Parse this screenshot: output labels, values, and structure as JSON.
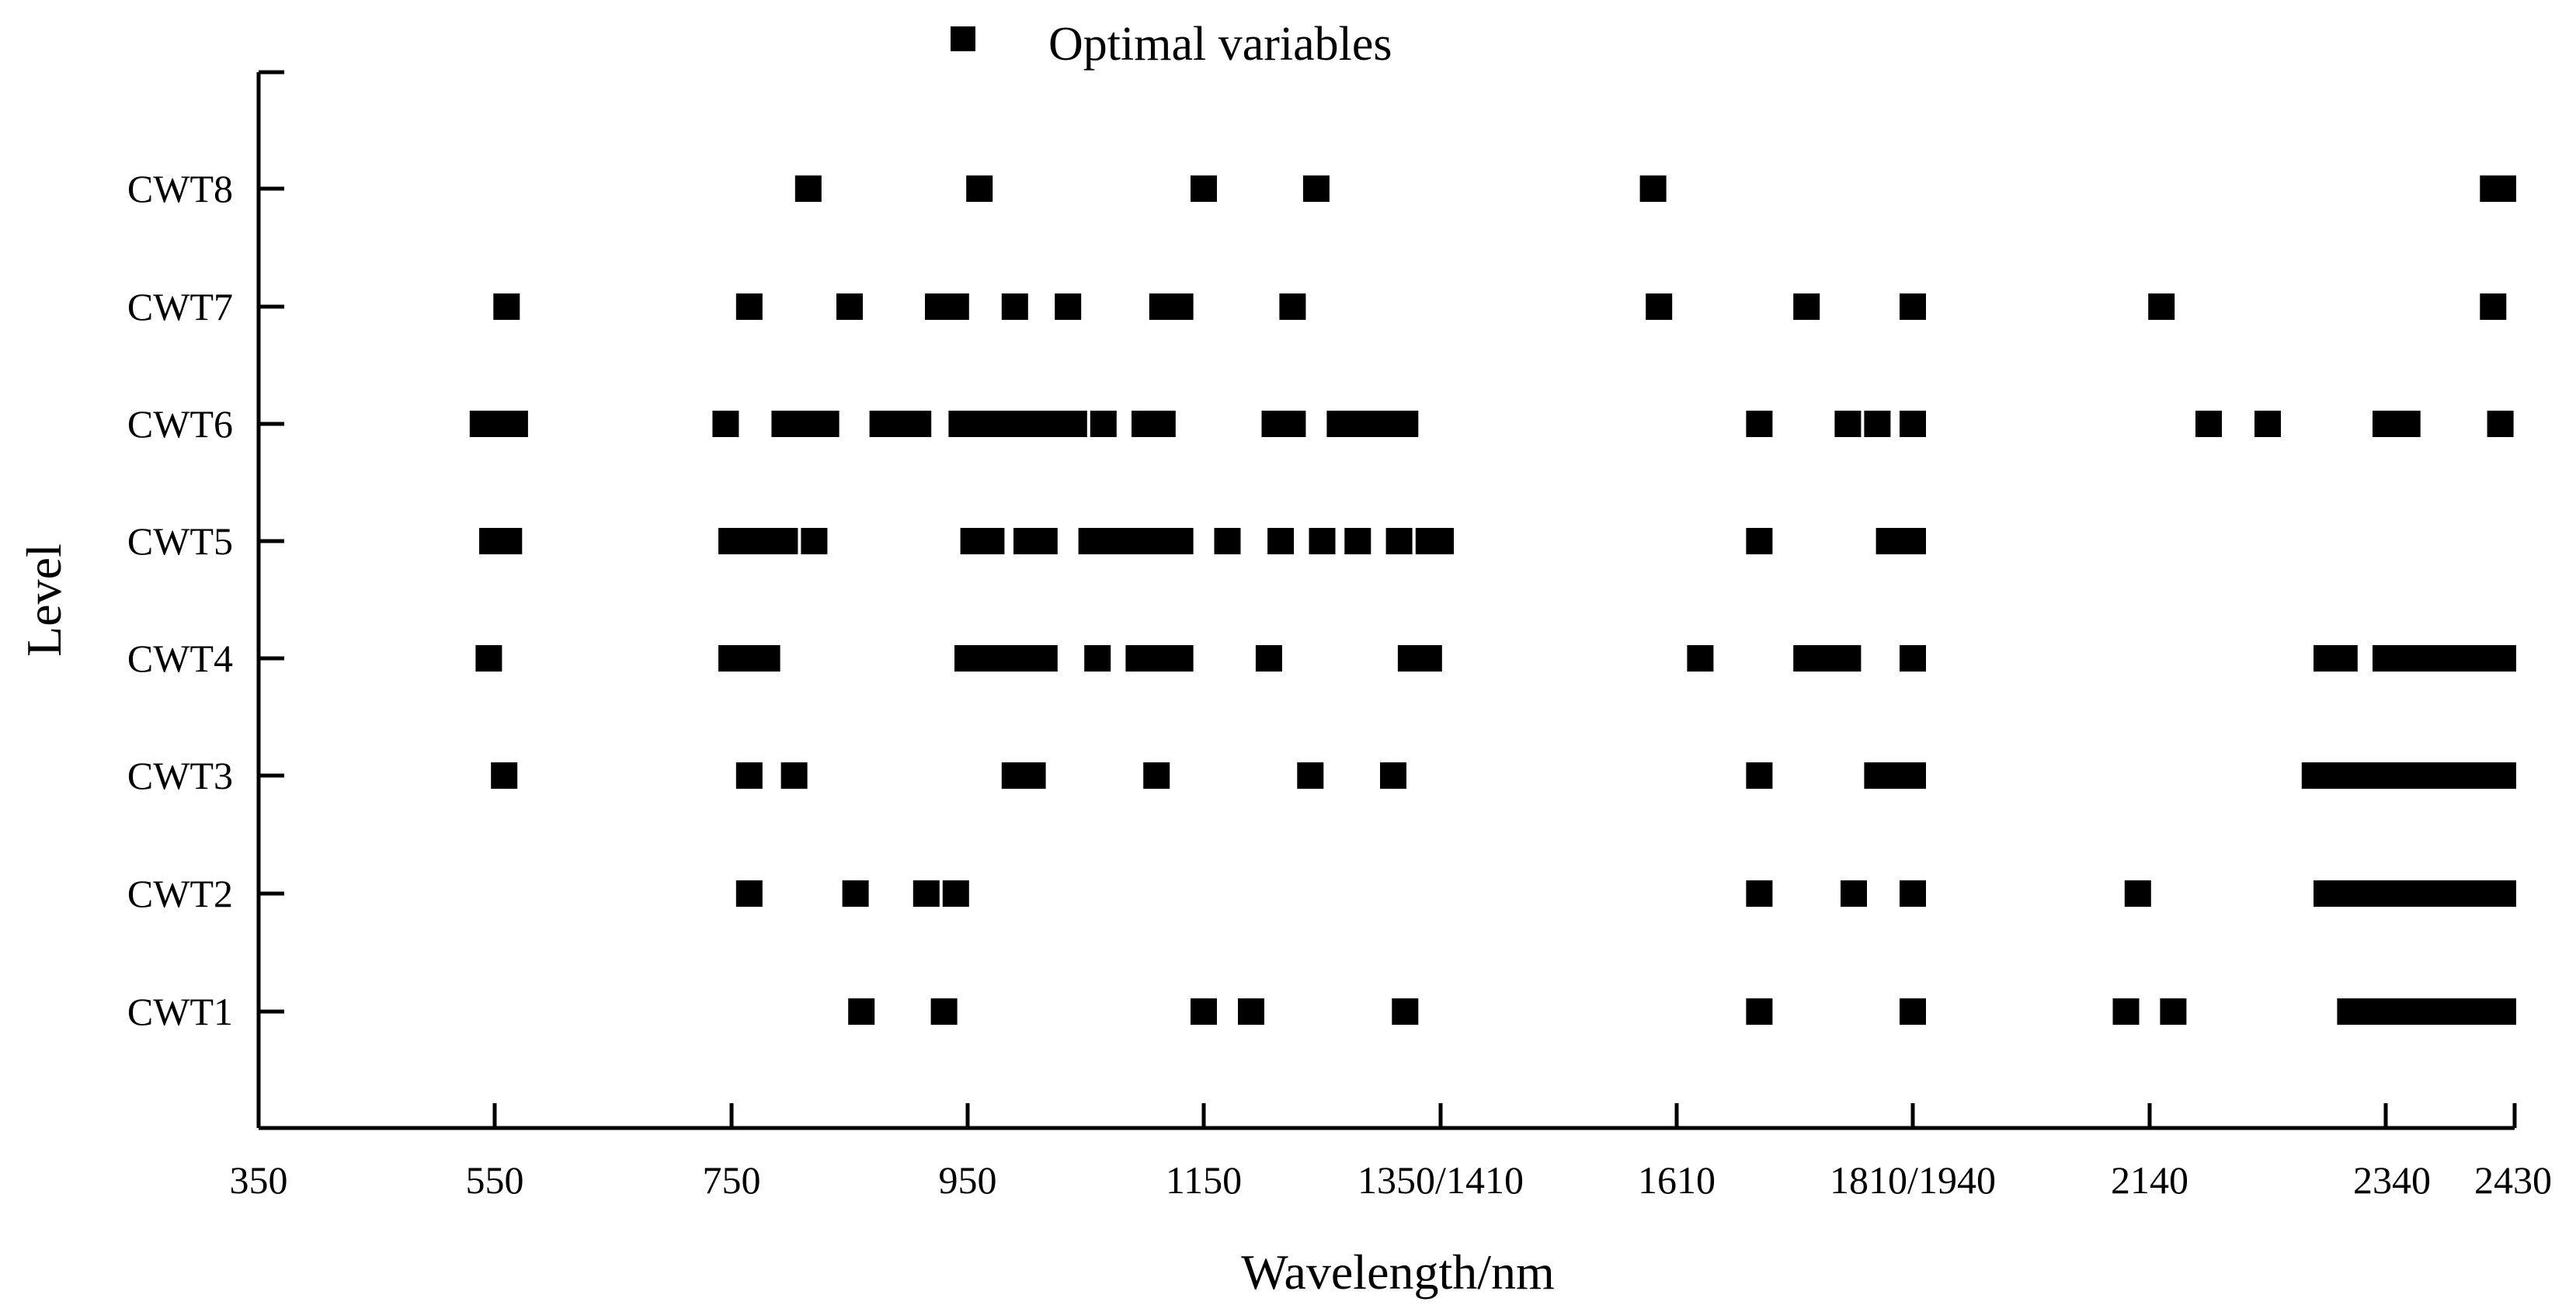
{
  "chart_data": {
    "type": "scatter",
    "title": "",
    "xlabel": "Wavelength/nm",
    "ylabel": "Level",
    "x_ticks": [
      "350",
      "550",
      "750",
      "950",
      "1150",
      "1350/1410",
      "1610",
      "1810/1940",
      "2140",
      "2340",
      "2430"
    ],
    "categories": [
      "CWT1",
      "CWT2",
      "CWT3",
      "CWT4",
      "CWT5",
      "CWT6",
      "CWT7",
      "CWT8"
    ],
    "legend": {
      "label": "Optimal variables",
      "position": "top",
      "marker": "square"
    },
    "grid": false,
    "marker_color": "#000000",
    "series": [
      {
        "name": "Optimal variables",
        "points": {
          "CWT1": [
            860,
            930,
            1150,
            1190,
            1320,
            1680,
            1880,
            1890,
            2120,
            2160,
            2310,
            2330,
            2340,
            2350,
            2360,
            2370,
            2380,
            2390,
            2400,
            2410,
            2420,
            2430
          ],
          "CWT2": [
            765,
            855,
            915,
            940,
            1680,
            1760,
            1880,
            1890,
            2130,
            2290,
            2300,
            2310,
            2320,
            2330,
            2340,
            2350,
            2360,
            2370,
            2380,
            2390,
            2400,
            2410,
            2420,
            2430
          ],
          "CWT3": [
            558,
            765,
            803,
            990,
            1005,
            1110,
            1240,
            1310,
            1680,
            1780,
            1800,
            1880,
            2280,
            2290,
            2300,
            2310,
            2320,
            2330,
            2340,
            2350,
            2360,
            2370,
            2380,
            2390,
            2400,
            2410,
            2420,
            2430
          ],
          "CWT4": [
            545,
            750,
            765,
            780,
            950,
            965,
            980,
            995,
            1015,
            1060,
            1095,
            1110,
            1130,
            1205,
            1325,
            1340,
            1630,
            1720,
            1740,
            1755,
            1880,
            1890,
            2290,
            2305,
            2340,
            2350,
            2360,
            2370,
            2380,
            2390,
            2400,
            2410,
            2420,
            2430
          ],
          "CWT5": [
            548,
            562,
            750,
            765,
            780,
            795,
            820,
            955,
            970,
            1000,
            1015,
            1055,
            1070,
            1085,
            1100,
            1115,
            1130,
            1170,
            1215,
            1250,
            1280,
            1315,
            1340,
            1350,
            1680,
            1790,
            1880,
            1890
          ],
          "CWT6": [
            540,
            555,
            567,
            745,
            795,
            810,
            830,
            878,
            893,
            908,
            945,
            960,
            975,
            990,
            1010,
            1025,
            1040,
            1065,
            1100,
            1115,
            1210,
            1225,
            1265,
            1280,
            1300,
            1320,
            1680,
            1755,
            1780,
            1855,
            1870,
            2190,
            2240,
            2340,
            2355,
            2420
          ],
          "CWT7": [
            560,
            765,
            850,
            925,
            940,
            990,
            1035,
            1115,
            1130,
            1225,
            1595,
            1720,
            1885,
            2150,
            2415
          ],
          "CWT8": [
            815,
            960,
            1150,
            1245,
            1590,
            2415,
            2430
          ]
        }
      }
    ]
  }
}
